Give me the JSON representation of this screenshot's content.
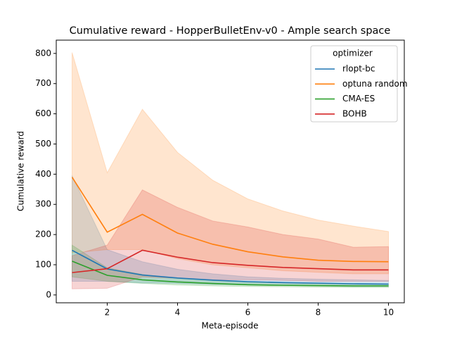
{
  "chart_data": {
    "type": "line",
    "title": "Cumulative reward - HopperBulletEnv-v0 - Ample search space",
    "x_label": "Meta-episode",
    "y_label": "Cumulative reward",
    "x": [
      1,
      2,
      3,
      4,
      5,
      6,
      7,
      8,
      9,
      10
    ],
    "xlim": [
      0.55,
      10.45
    ],
    "xticks": [
      2,
      4,
      6,
      8,
      10
    ],
    "ylim": [
      -26,
      844
    ],
    "yticks": [
      0,
      100,
      200,
      300,
      400,
      500,
      600,
      700,
      800
    ],
    "legend_title": "optimizer",
    "legend_position": "upper right",
    "band_opacity": 0.2,
    "series": [
      {
        "name": "rlopt-bc",
        "color": "#1f77b4",
        "values": [
          148,
          86,
          66,
          56,
          49,
          44,
          41,
          39,
          37,
          36
        ],
        "lower": [
          45,
          45,
          40,
          38,
          35,
          33,
          32,
          30,
          28,
          28
        ],
        "upper": [
          395,
          150,
          110,
          85,
          70,
          60,
          55,
          52,
          50,
          48
        ]
      },
      {
        "name": "optuna random",
        "color": "#ff7f0e",
        "values": [
          390,
          208,
          267,
          205,
          168,
          143,
          126,
          115,
          111,
          110
        ],
        "lower": [
          140,
          150,
          150,
          120,
          100,
          90,
          80,
          75,
          70,
          70
        ],
        "upper": [
          803,
          405,
          615,
          472,
          380,
          318,
          278,
          248,
          228,
          210
        ]
      },
      {
        "name": "CMA-ES",
        "color": "#2ca02c",
        "values": [
          112,
          65,
          50,
          43,
          38,
          34,
          32,
          31,
          30,
          30
        ],
        "lower": [
          60,
          45,
          38,
          33,
          30,
          28,
          27,
          26,
          25,
          25
        ],
        "upper": [
          165,
          90,
          68,
          55,
          48,
          42,
          40,
          38,
          36,
          35
        ]
      },
      {
        "name": "BOHB",
        "color": "#d62728",
        "values": [
          74,
          87,
          148,
          125,
          107,
          98,
          91,
          87,
          83,
          83
        ],
        "lower": [
          20,
          22,
          60,
          55,
          50,
          50,
          48,
          45,
          45,
          45
        ],
        "upper": [
          130,
          165,
          348,
          290,
          245,
          225,
          200,
          185,
          158,
          160
        ]
      }
    ]
  }
}
